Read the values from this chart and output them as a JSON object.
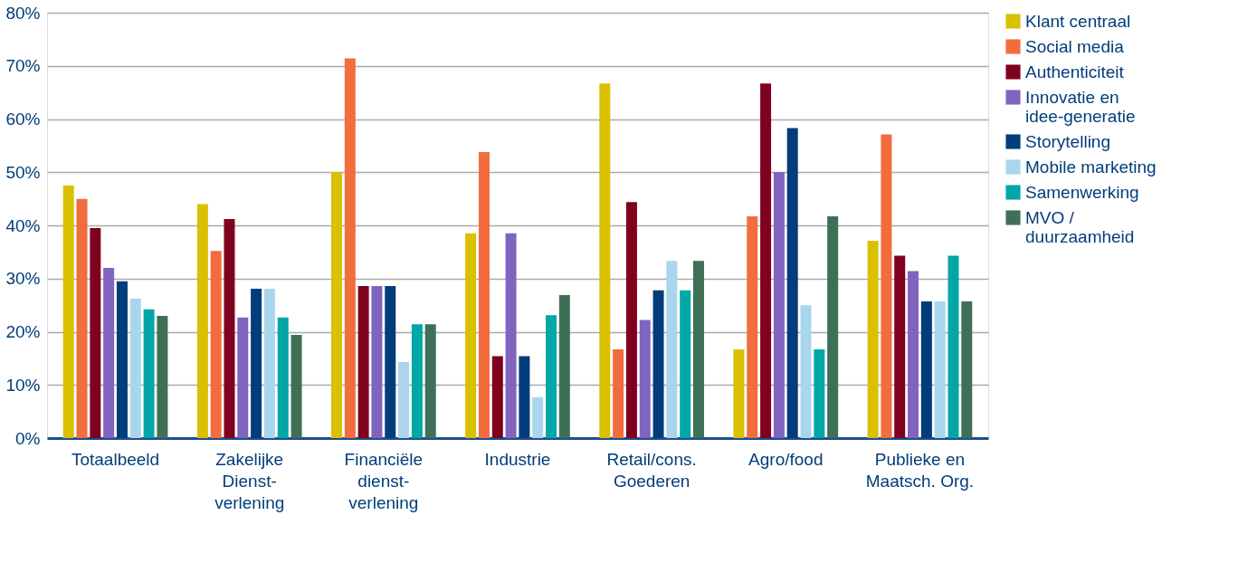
{
  "chart_data": {
    "type": "bar",
    "categories": [
      "Totaalbeeld",
      "Zakelijke\nDienst-\nverlening",
      "Financiële\ndienst-\nverlening",
      "Industrie",
      "Retail/cons.\nGoederen",
      "Agro/food",
      "Publieke en\nMaatsch. Org."
    ],
    "series": [
      {
        "name": "Klant centraal",
        "color": "#d9c000",
        "values": [
          47.5,
          44,
          50,
          38.5,
          66.7,
          16.7,
          37.1
        ]
      },
      {
        "name": "Social media",
        "color": "#f26c3e",
        "values": [
          45,
          35.2,
          71.4,
          53.8,
          16.7,
          41.7,
          57.1
        ]
      },
      {
        "name": "Authenticiteit",
        "color": "#800020",
        "values": [
          39.5,
          41.2,
          28.6,
          15.4,
          44.4,
          66.7,
          34.3
        ]
      },
      {
        "name": "Innovatie en\nidee-generatie",
        "color": "#8064be",
        "values": [
          32,
          22.7,
          28.6,
          38.5,
          22.2,
          50,
          31.4
        ]
      },
      {
        "name": "Storytelling",
        "color": "#003d7a",
        "values": [
          29.5,
          28.1,
          28.6,
          15.4,
          27.8,
          58.3,
          25.7
        ]
      },
      {
        "name": "Mobile marketing",
        "color": "#a9d6ed",
        "values": [
          26.2,
          28.1,
          14.3,
          7.7,
          33.3,
          25,
          25.7
        ]
      },
      {
        "name": "Samenwerking",
        "color": "#00a7a6",
        "values": [
          24.2,
          22.7,
          21.4,
          23.1,
          27.8,
          16.7,
          34.3
        ]
      },
      {
        "name": "MVO /\nduurzaamheid",
        "color": "#3e7058",
        "values": [
          23,
          19.4,
          21.4,
          26.9,
          33.3,
          41.7,
          25.7
        ]
      }
    ],
    "ylim": [
      0,
      80
    ],
    "yticks": [
      {
        "value": 0,
        "label": "0%"
      },
      {
        "value": 10,
        "label": "10%"
      },
      {
        "value": 20,
        "label": "20%"
      },
      {
        "value": 30,
        "label": "30%"
      },
      {
        "value": 40,
        "label": "40%"
      },
      {
        "value": 50,
        "label": "50%"
      },
      {
        "value": 60,
        "label": "60%"
      },
      {
        "value": 70,
        "label": "70%"
      },
      {
        "value": 80,
        "label": "80%"
      }
    ],
    "grid": "y",
    "legend": "top right"
  }
}
